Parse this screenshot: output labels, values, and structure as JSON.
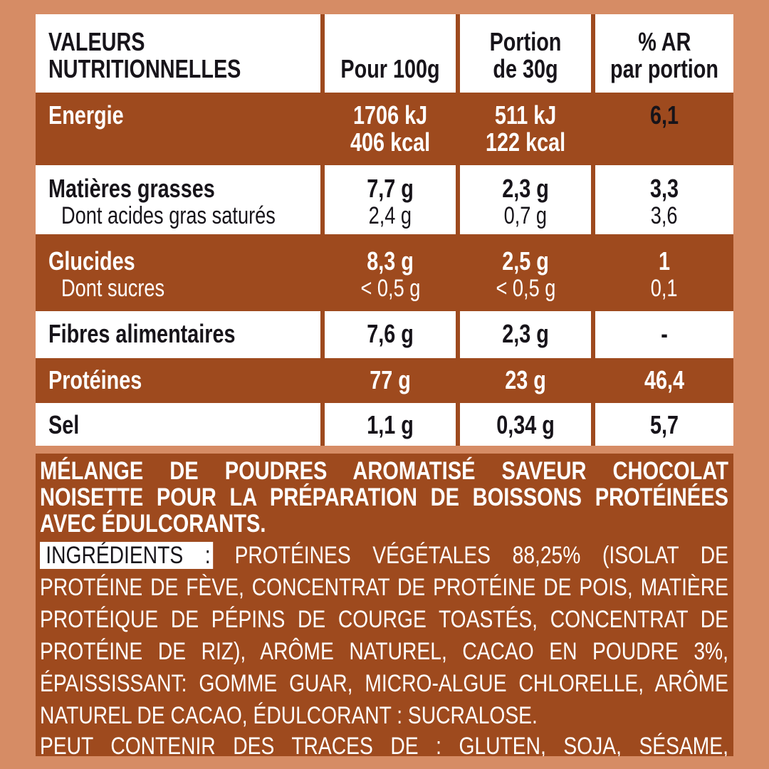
{
  "colors": {
    "background": "#D68C65",
    "brown": "#9E4A1E",
    "white": "#FFFFFF",
    "text_dark": "#17141A"
  },
  "table": {
    "header": {
      "col1": [
        "VALEURS",
        "NUTRITIONNELLES"
      ],
      "col2": [
        "Pour 100g"
      ],
      "col3": [
        "Portion",
        "de 30g"
      ],
      "col4": [
        "% AR",
        "par portion"
      ]
    },
    "rows": [
      {
        "label": "Energie",
        "per100": [
          "1706 kJ",
          "406 kcal"
        ],
        "portion": [
          "511 kJ",
          "122 kcal"
        ],
        "ar": "6,1"
      },
      {
        "label": "Matières grasses",
        "per100": "7,7 g",
        "portion": "2,3 g",
        "ar": "3,3",
        "sub": {
          "label": "Dont acides gras saturés",
          "per100": "2,4 g",
          "portion": "0,7 g",
          "ar": "3,6"
        }
      },
      {
        "label": "Glucides",
        "per100": "8,3 g",
        "portion": "2,5 g",
        "ar": "1",
        "sub": {
          "label": "Dont sucres",
          "per100": "< 0,5 g",
          "portion": "< 0,5 g",
          "ar": "0,1"
        }
      },
      {
        "label": "Fibres alimentaires",
        "per100": "7,6 g",
        "portion": "2,3 g",
        "ar": "-"
      },
      {
        "label": "Protéines",
        "per100": "77 g",
        "portion": "23 g",
        "ar": "46,4"
      },
      {
        "label": "Sel",
        "per100": "1,1 g",
        "portion": "0,34 g",
        "ar": "5,7"
      }
    ]
  },
  "ingredients": {
    "title": "MÉLANGE DE POUDRES AROMATISÉ SAVEUR CHOCOLAT NOISETTE POUR LA PRÉPARATION DE BOISSONS PROTÉINÉES AVEC ÉDULCORANTS.",
    "label": "INGRÉDIENTS :",
    "text": "PROTÉINES VÉGÉTALES 88,25% (ISOLAT DE PROTÉINE DE FÈVE, CONCENTRAT DE PROTÉINE DE POIS, MATIÈRE PROTÉIQUE DE PÉPINS DE COURGE TOASTÉS, CONCENTRAT DE PROTÉINE DE RIZ), ARÔME NATUREL, CACAO EN POUDRE 3%, ÉPAISSISSANT: GOMME GUAR, MICRO-ALGUE CHLORELLE, ARÔME NATUREL DE CACAO, ÉDULCORANT : SUCRALOSE.",
    "traces": "PEUT CONTENIR DES TRACES DE : GLUTEN, SOJA, SÉSAME, ARACHIDE, FRUITS À COQUES, LAIT."
  }
}
